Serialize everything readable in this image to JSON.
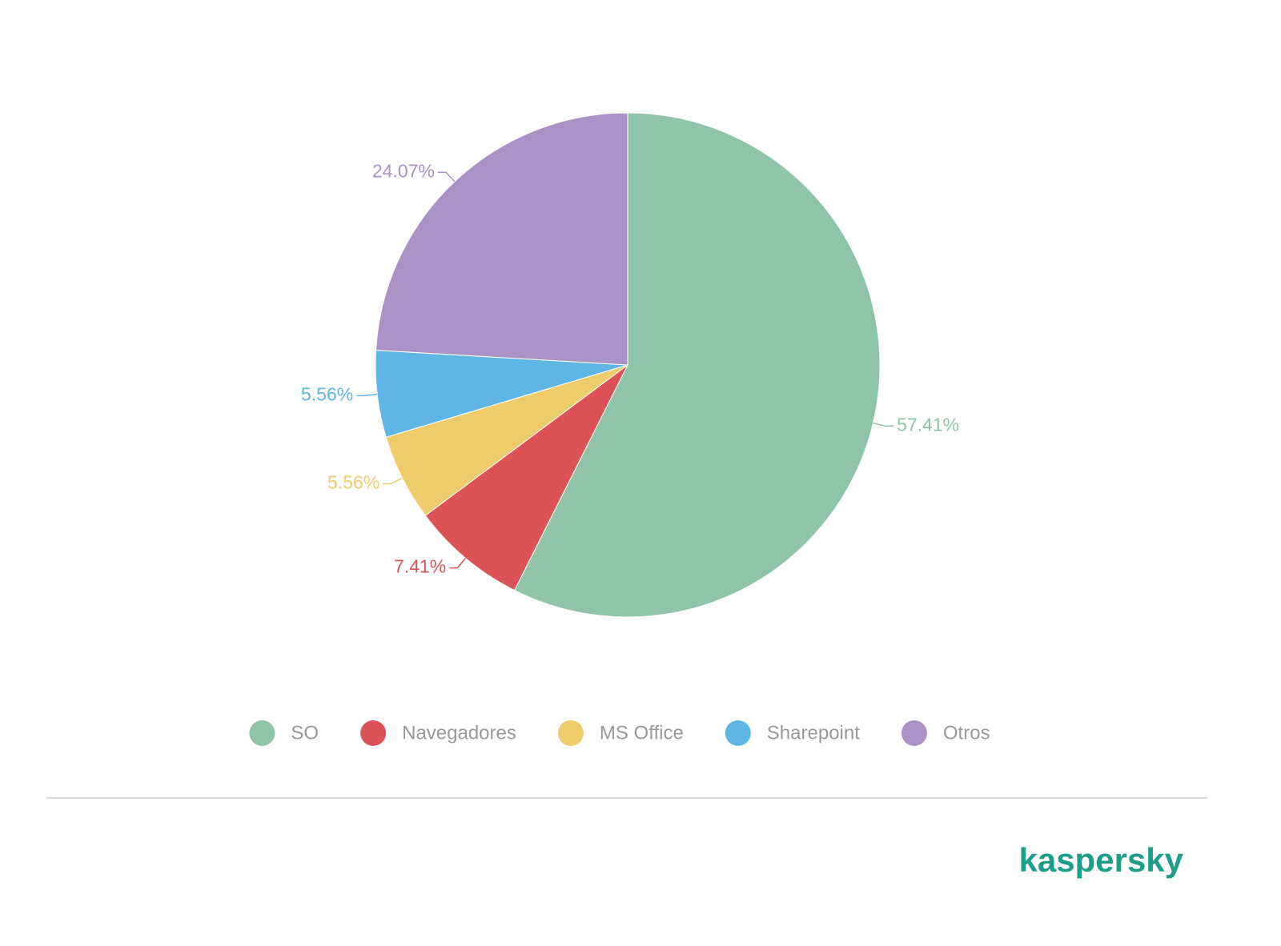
{
  "chart_data": {
    "type": "pie",
    "categories": [
      "SO",
      "Navegadores",
      "MS Office",
      "Sharepoint",
      "Otros"
    ],
    "values": [
      57.41,
      7.41,
      5.56,
      5.56,
      24.07
    ],
    "value_labels": [
      "57.41%",
      "7.41%",
      "5.56%",
      "5.56%",
      "24.07%"
    ],
    "colors": [
      "#8fc4a8",
      "#dc5357",
      "#efcb6b",
      "#5fb6e4",
      "#aa92c6"
    ],
    "legend": "bottom"
  },
  "footer": {
    "logo": "kaspersky"
  }
}
